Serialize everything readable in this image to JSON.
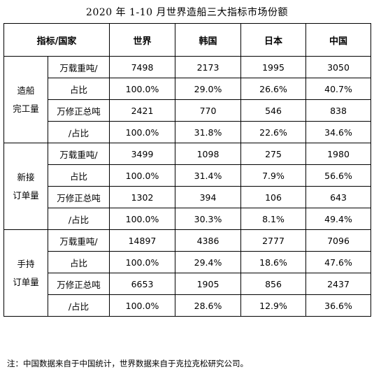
{
  "title": "2020 年 1-10 月世界造船三大指标市场份额",
  "header": {
    "indicator": "指标/国家",
    "world": "世界",
    "korea": "韩国",
    "japan": "日本",
    "china": "中国"
  },
  "sections": [
    {
      "category_line1": "造船",
      "category_line2": "完工量",
      "rows": [
        {
          "unit_line1": "万载重吨/",
          "unit_line2": "占比",
          "value": {
            "world": "7498",
            "korea": "2173",
            "japan": "1995",
            "china": "3050"
          },
          "share": {
            "world": "100.0%",
            "korea": "29.0%",
            "japan": "26.6%",
            "china": "40.7%"
          }
        },
        {
          "unit_line1": "万修正总吨",
          "unit_line2": "/占比",
          "value": {
            "world": "2421",
            "korea": "770",
            "japan": "546",
            "china": "838"
          },
          "share": {
            "world": "100.0%",
            "korea": "31.8%",
            "japan": "22.6%",
            "china": "34.6%"
          }
        }
      ]
    },
    {
      "category_line1": "新接",
      "category_line2": "订单量",
      "rows": [
        {
          "unit_line1": "万载重吨/",
          "unit_line2": "占比",
          "value": {
            "world": "3499",
            "korea": "1098",
            "japan": "275",
            "china": "1980"
          },
          "share": {
            "world": "100.0%",
            "korea": "31.4%",
            "japan": "7.9%",
            "china": "56.6%"
          }
        },
        {
          "unit_line1": "万修正总吨",
          "unit_line2": "/占比",
          "value": {
            "world": "1302",
            "korea": "394",
            "japan": "106",
            "china": "643"
          },
          "share": {
            "world": "100.0%",
            "korea": "30.3%",
            "japan": "8.1%",
            "china": "49.4%"
          }
        }
      ]
    },
    {
      "category_line1": "手持",
      "category_line2": "订单量",
      "rows": [
        {
          "unit_line1": "万载重吨/",
          "unit_line2": "占比",
          "value": {
            "world": "14897",
            "korea": "4386",
            "japan": "2777",
            "china": "7096"
          },
          "share": {
            "world": "100.0%",
            "korea": "29.4%",
            "japan": "18.6%",
            "china": "47.6%"
          }
        },
        {
          "unit_line1": "万修正总吨",
          "unit_line2": "/占比",
          "value": {
            "world": "6653",
            "korea": "1905",
            "japan": "856",
            "china": "2437"
          },
          "share": {
            "world": "100.0%",
            "korea": "28.6%",
            "japan": "12.9%",
            "china": "36.6%"
          }
        }
      ]
    }
  ],
  "note": "注：中国数据来自于中国统计，世界数据来自于克拉克松研究公司。"
}
